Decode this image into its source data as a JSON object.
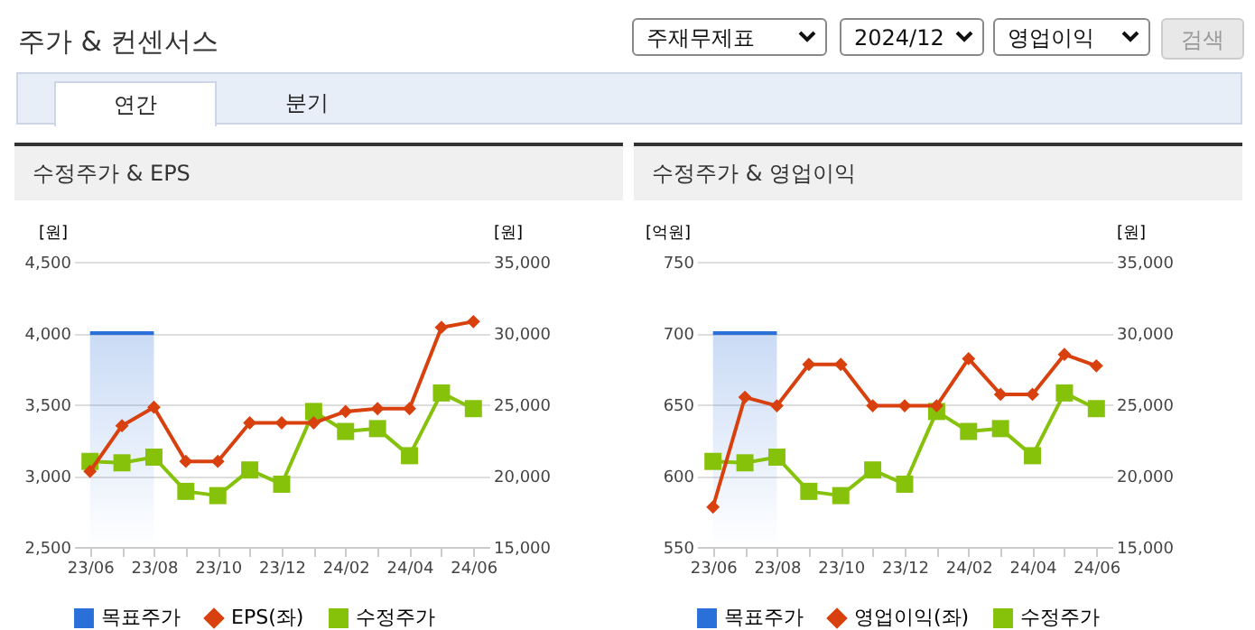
{
  "chart_data": [
    {
      "type": "other",
      "title": "주가 & 컨센서스",
      "annotations": [
        "주재무제표",
        "2024/12",
        "영업이익",
        "검색",
        "연간",
        "분기"
      ]
    },
    {
      "type": "line",
      "title": "수정주가 & EPS",
      "ylabel": "[원]",
      "y2label": "[원]",
      "categories": [
        "23/06",
        null,
        "23/08",
        null,
        "23/10",
        null,
        "23/12",
        null,
        "24/02",
        null,
        "24/04",
        null,
        "24/06"
      ],
      "ylim": [
        2500,
        4500
      ],
      "yticks": [
        {
          "value": 2500,
          "label": "2,500"
        },
        {
          "value": 3000,
          "label": "3,000"
        },
        {
          "value": 3500,
          "label": "3,500"
        },
        {
          "value": 4000,
          "label": "4,000"
        },
        {
          "value": 4500,
          "label": "4,500"
        }
      ],
      "y2lim": [
        15000,
        35000
      ],
      "y2ticks": [
        {
          "value": 15000,
          "label": "15,000"
        },
        {
          "value": 20000,
          "label": "20,000"
        },
        {
          "value": 25000,
          "label": "25,000"
        },
        {
          "value": 30000,
          "label": "30,000"
        },
        {
          "value": 35000,
          "label": "35,000"
        }
      ],
      "grid": "y",
      "legend": "bottom",
      "series": [
        {
          "name": "목표주가",
          "type": "area",
          "axis": "y2",
          "color": "#2b6fd8",
          "values": [
            30000,
            30000,
            30000,
            null,
            null,
            null,
            null,
            null,
            null,
            null,
            null,
            null,
            null
          ]
        },
        {
          "name": "EPS(좌)",
          "color": "#d8400e",
          "marker": "diamond",
          "values": [
            3030,
            3350,
            3480,
            3100,
            3100,
            3370,
            3370,
            3370,
            3450,
            3470,
            3470,
            4040,
            4080
          ]
        },
        {
          "name": "수정주가",
          "color": "#86c20a",
          "marker": "square",
          "axis": "y2",
          "values": [
            21000,
            20900,
            21300,
            18900,
            18600,
            20400,
            19400,
            24500,
            23100,
            23300,
            21400,
            25800,
            24700
          ]
        }
      ]
    },
    {
      "type": "line",
      "title": "수정주가 & 영업이익",
      "ylabel": "[억원]",
      "y2label": "[원]",
      "categories": [
        "23/06",
        null,
        "23/08",
        null,
        "23/10",
        null,
        "23/12",
        null,
        "24/02",
        null,
        "24/04",
        null,
        "24/06"
      ],
      "ylim": [
        550,
        750
      ],
      "yticks": [
        550,
        600,
        650,
        700,
        750
      ],
      "y2lim": [
        15000,
        35000
      ],
      "y2ticks": [
        {
          "value": 15000,
          "label": "15,000"
        },
        {
          "value": 20000,
          "label": "20,000"
        },
        {
          "value": 25000,
          "label": "25,000"
        },
        {
          "value": 30000,
          "label": "30,000"
        },
        {
          "value": 35000,
          "label": "35,000"
        }
      ],
      "grid": "y",
      "legend": "bottom",
      "series": [
        {
          "name": "목표주가",
          "type": "area",
          "axis": "y2",
          "color": "#2b6fd8",
          "values": [
            30000,
            30000,
            30000,
            null,
            null,
            null,
            null,
            null,
            null,
            null,
            null,
            null,
            null
          ]
        },
        {
          "name": "영업이익(좌)",
          "color": "#d8400e",
          "marker": "diamond",
          "values": [
            578,
            655,
            649,
            678,
            678,
            649,
            649,
            649,
            682,
            657,
            657,
            685,
            677
          ]
        },
        {
          "name": "수정주가",
          "color": "#86c20a",
          "marker": "square",
          "axis": "y2",
          "values": [
            21000,
            20900,
            21300,
            18900,
            18600,
            20400,
            19400,
            24500,
            23100,
            23300,
            21400,
            25800,
            24700
          ]
        }
      ]
    }
  ]
}
